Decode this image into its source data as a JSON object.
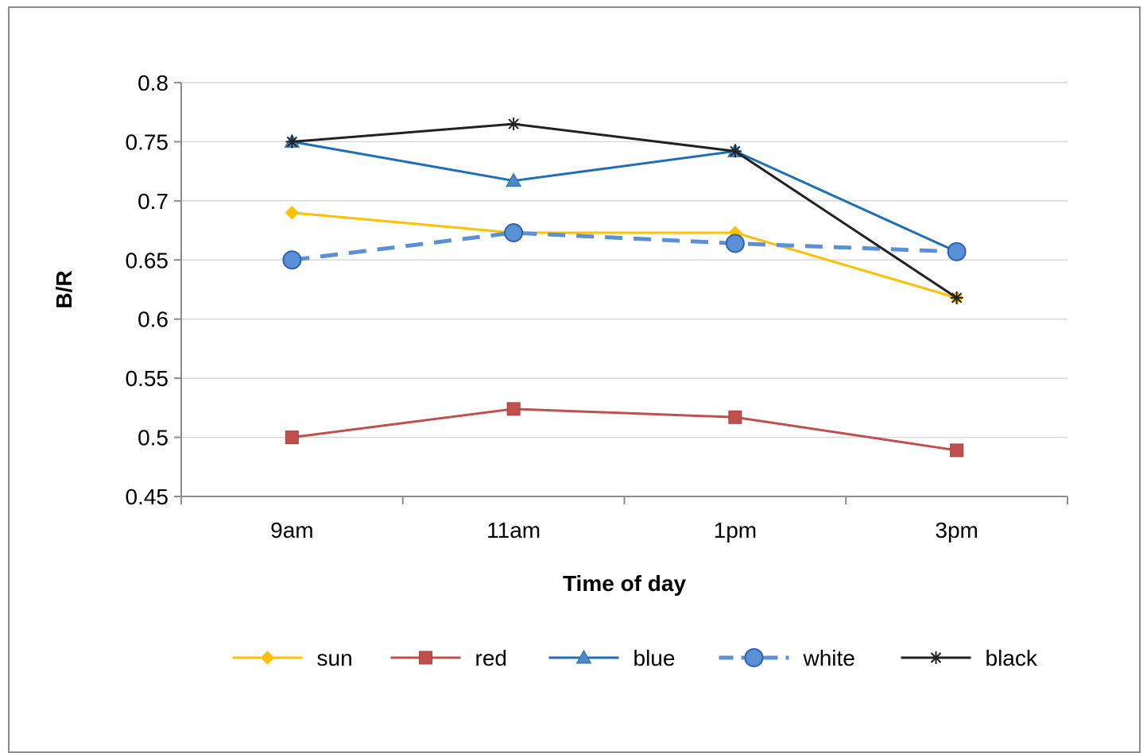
{
  "chart_data": {
    "type": "line",
    "title": "",
    "xlabel": "Time of day",
    "ylabel": "B/R",
    "categories": [
      "9am",
      "11am",
      "1pm",
      "3pm"
    ],
    "ylim": [
      0.45,
      0.8
    ],
    "yticks": [
      0.45,
      0.5,
      0.55,
      0.6,
      0.65,
      0.7,
      0.75,
      0.8
    ],
    "ytick_labels": [
      "0.45",
      "0.5",
      "0.55",
      "0.6",
      "0.65",
      "0.7",
      "0.75",
      "0.8"
    ],
    "grid": "horizontal",
    "legend_position": "bottom",
    "series": [
      {
        "name": "sun",
        "values": [
          0.69,
          0.673,
          0.673,
          0.618
        ],
        "color": "#FFC000",
        "marker": "diamond",
        "dash": "solid"
      },
      {
        "name": "red",
        "values": [
          0.5,
          0.524,
          0.517,
          0.489
        ],
        "color": "#C0504D",
        "marker": "square",
        "dash": "solid"
      },
      {
        "name": "blue",
        "values": [
          0.75,
          0.717,
          0.742,
          0.657
        ],
        "color": "#1F6FB5",
        "marker": "triangle",
        "dash": "solid"
      },
      {
        "name": "white",
        "values": [
          0.65,
          0.673,
          0.664,
          0.657
        ],
        "color": "#5B8FD6",
        "marker": "circle",
        "dash": "dashed"
      },
      {
        "name": "black",
        "values": [
          0.75,
          0.765,
          0.742,
          0.618
        ],
        "color": "#222222",
        "marker": "star",
        "dash": "solid"
      }
    ]
  }
}
